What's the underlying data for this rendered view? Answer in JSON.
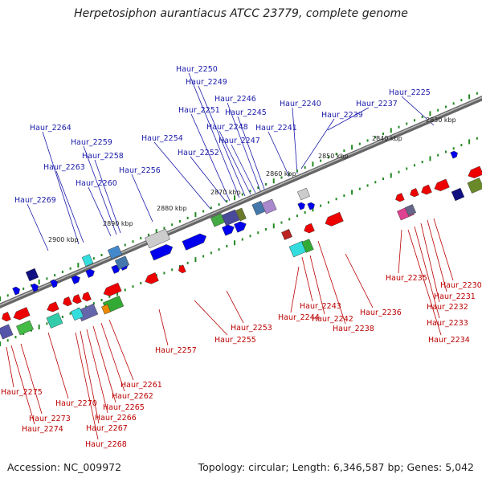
{
  "title": "Herpetosiphon aurantiacus ATCC 23779, complete genome",
  "footer": {
    "accession": "Accession: NC_009972",
    "summary": "Topology: circular; Length: 6,346,587 bp; Genes: 5,042"
  },
  "ticks": [
    "2830 kbp",
    "2840 kbp",
    "2850 kbp",
    "2860 kbp",
    "2870 kbp",
    "2880 kbp",
    "2890 kbp",
    "2900 kbp"
  ],
  "labels_top": [
    "Haur_2225",
    "Haur_2237",
    "Haur_2239",
    "Haur_2240",
    "Haur_2241",
    "Haur_2245",
    "Haur_2246",
    "Haur_2247",
    "Haur_2248",
    "Haur_2249",
    "Haur_2250",
    "Haur_2251",
    "Haur_2252",
    "Haur_2254",
    "Haur_2256",
    "Haur_2258",
    "Haur_2259",
    "Haur_2260",
    "Haur_2263",
    "Haur_2264",
    "Haur_2269"
  ],
  "labels_bottom": [
    "Haur_2230",
    "Haur_2231",
    "Haur_2232",
    "Haur_2233",
    "Haur_2234",
    "Haur_2235",
    "Haur_2236",
    "Haur_2238",
    "Haur_2242",
    "Haur_2243",
    "Haur_2244",
    "Haur_2253",
    "Haur_2255",
    "Haur_2257",
    "Haur_2261",
    "Haur_2262",
    "Haur_2265",
    "Haur_2266",
    "Haur_2267",
    "Haur_2268",
    "Haur_2270",
    "Haur_2273",
    "Haur_2274",
    "Haur_2275"
  ],
  "colors": {
    "forward_strand": "#0000ee",
    "reverse_strand": "#ee0000",
    "label_top": "#1a1aaa",
    "label_bottom": "#bb0000",
    "backbone": "#888888",
    "tick": "#228822"
  }
}
